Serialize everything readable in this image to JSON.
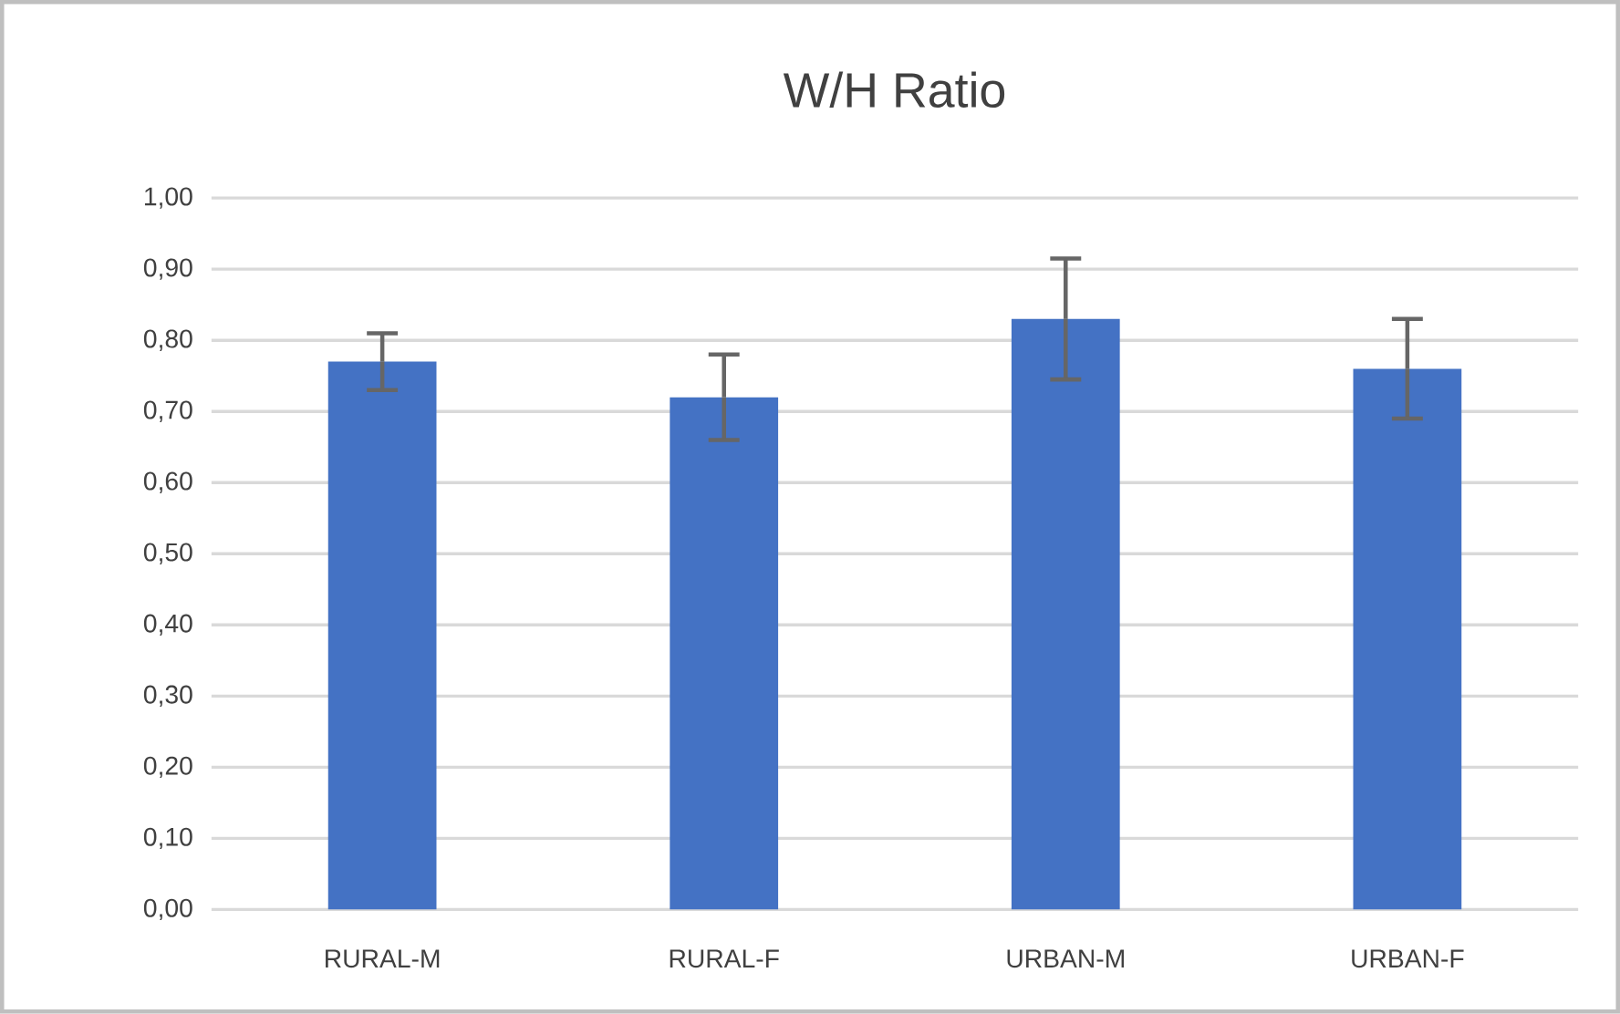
{
  "chart_data": {
    "type": "bar",
    "title": "W/H Ratio",
    "categories": [
      "RURAL-M",
      "RURAL-F",
      "URBAN-M",
      "URBAN-F"
    ],
    "values": [
      0.77,
      0.72,
      0.83,
      0.76
    ],
    "errors": [
      0.04,
      0.06,
      0.085,
      0.07
    ],
    "color": "#4472c4",
    "ylim": [
      0,
      1
    ],
    "yticks": [
      {
        "value": 0,
        "label": "0,00"
      },
      {
        "value": 0.1,
        "label": "0,10"
      },
      {
        "value": 0.2,
        "label": "0,20"
      },
      {
        "value": 0.3,
        "label": "0,30"
      },
      {
        "value": 0.4,
        "label": "0,40"
      },
      {
        "value": 0.5,
        "label": "0,50"
      },
      {
        "value": 0.6,
        "label": "0,60"
      },
      {
        "value": 0.7,
        "label": "0,70"
      },
      {
        "value": 0.8,
        "label": "0,80"
      },
      {
        "value": 0.9,
        "label": "0,90"
      },
      {
        "value": 1,
        "label": "1,00"
      }
    ],
    "grid": "y"
  }
}
